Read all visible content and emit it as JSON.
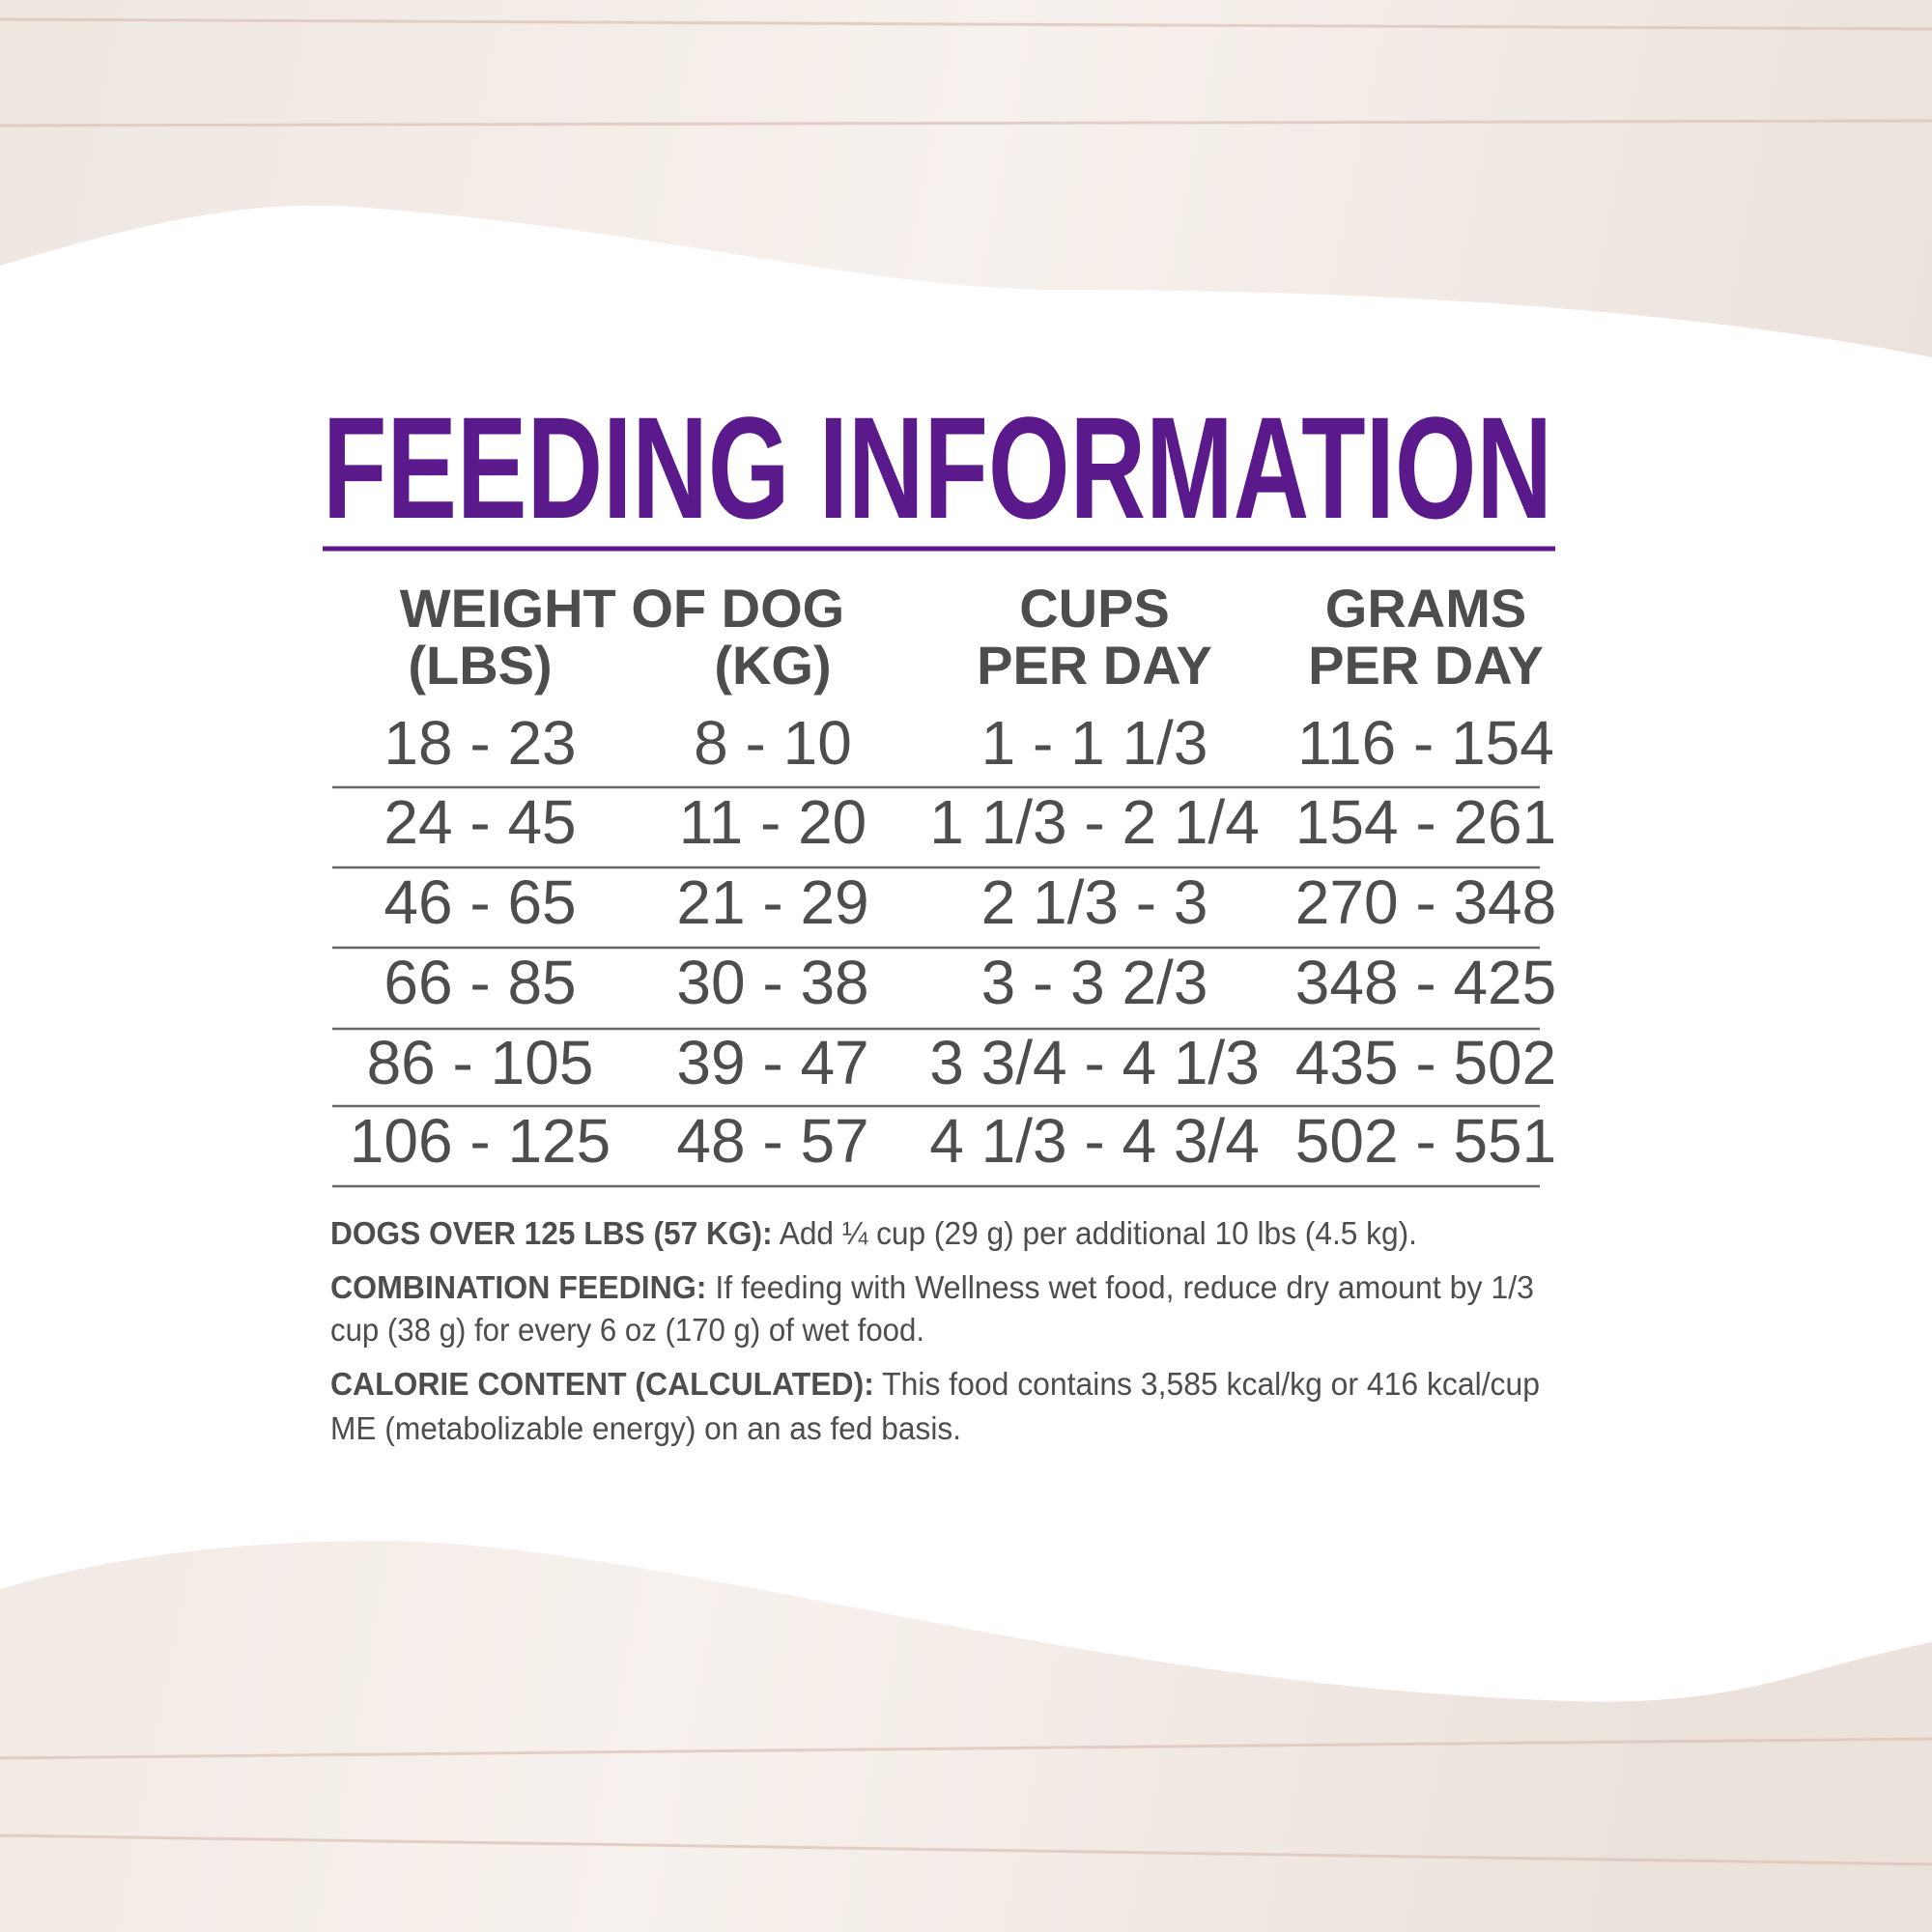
{
  "title": "FEEDING INFORMATION",
  "table": {
    "headers": {
      "group": "WEIGHT OF DOG",
      "columns": [
        "(LBS)",
        "(KG)",
        [
          "CUPS",
          "PER DAY"
        ],
        [
          "GRAMS",
          "PER DAY"
        ]
      ]
    },
    "rows": [
      [
        "18 - 23",
        "8 - 10",
        "1 - 1 1/3",
        "116 - 154"
      ],
      [
        "24 - 45",
        "11 - 20",
        "1 1/3 - 2 1/4",
        "154 - 261"
      ],
      [
        "46 - 65",
        "21 - 29",
        "2 1/3 - 3",
        "270 - 348"
      ],
      [
        "66 - 85",
        "30 - 38",
        "3 - 3 2/3",
        "348 - 425"
      ],
      [
        "86 - 105",
        "39 - 47",
        "3 3/4 - 4 1/3",
        "435 - 502"
      ],
      [
        "106 - 125",
        "48 - 57",
        "4 1/3 - 4 3/4",
        "502 - 551"
      ]
    ]
  },
  "notes": [
    {
      "label": "DOGS OVER 125 LBS (57 KG):",
      "lines": [
        "Add ¼ cup (29 g) per additional 10 lbs (4.5 kg)."
      ]
    },
    {
      "label": "COMBINATION FEEDING:",
      "lines": [
        "If feeding with Wellness wet food, reduce dry amount by 1/3",
        "cup (38 g) for every 6 oz (170 g) of wet food."
      ]
    },
    {
      "label": "CALORIE CONTENT (CALCULATED):",
      "lines": [
        "This food contains 3,585 kcal/kg or 416 kcal/cup",
        "ME (metabolizable energy) on an as fed basis."
      ]
    }
  ]
}
